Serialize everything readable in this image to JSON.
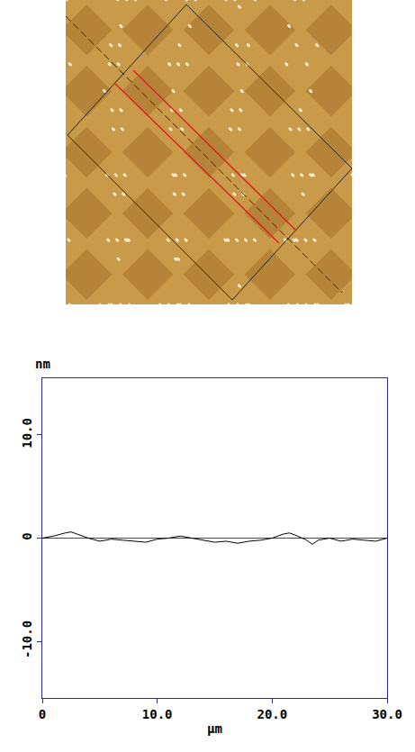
{
  "chart_data": {
    "type": "line",
    "x_label": "µm",
    "y_label": "nm",
    "x": [
      0,
      1,
      2,
      2.5,
      3,
      4,
      5,
      6,
      7,
      8,
      9,
      10,
      11,
      12,
      13,
      14,
      15,
      16,
      17,
      18,
      19,
      20,
      21,
      21.5,
      22,
      23,
      23.5,
      24,
      25,
      26,
      27,
      28,
      29,
      30
    ],
    "values": [
      0.0,
      0.2,
      0.5,
      0.6,
      0.4,
      0.0,
      -0.3,
      -0.1,
      -0.2,
      -0.3,
      -0.4,
      -0.1,
      0.0,
      0.2,
      0.0,
      -0.2,
      -0.4,
      -0.3,
      -0.5,
      -0.3,
      -0.2,
      0.0,
      0.4,
      0.5,
      0.3,
      -0.2,
      -0.6,
      -0.2,
      0.0,
      -0.3,
      -0.1,
      -0.2,
      -0.3,
      0.0
    ],
    "color": "#000000",
    "reference_line": {
      "value": 0,
      "color": "#2a3cc8"
    },
    "xlim": [
      0,
      30
    ],
    "xticks": [
      0,
      {
        "value": 10,
        "label": "10.0"
      },
      {
        "value": 20,
        "label": "20.0"
      },
      {
        "value": 30,
        "label": "30.0"
      }
    ],
    "ylim": [
      -15.5,
      15.5
    ],
    "yticks": [
      {
        "value": -10,
        "label": "-10.0"
      },
      0,
      {
        "value": 10,
        "label": "10.0"
      }
    ],
    "grid": false
  }
}
